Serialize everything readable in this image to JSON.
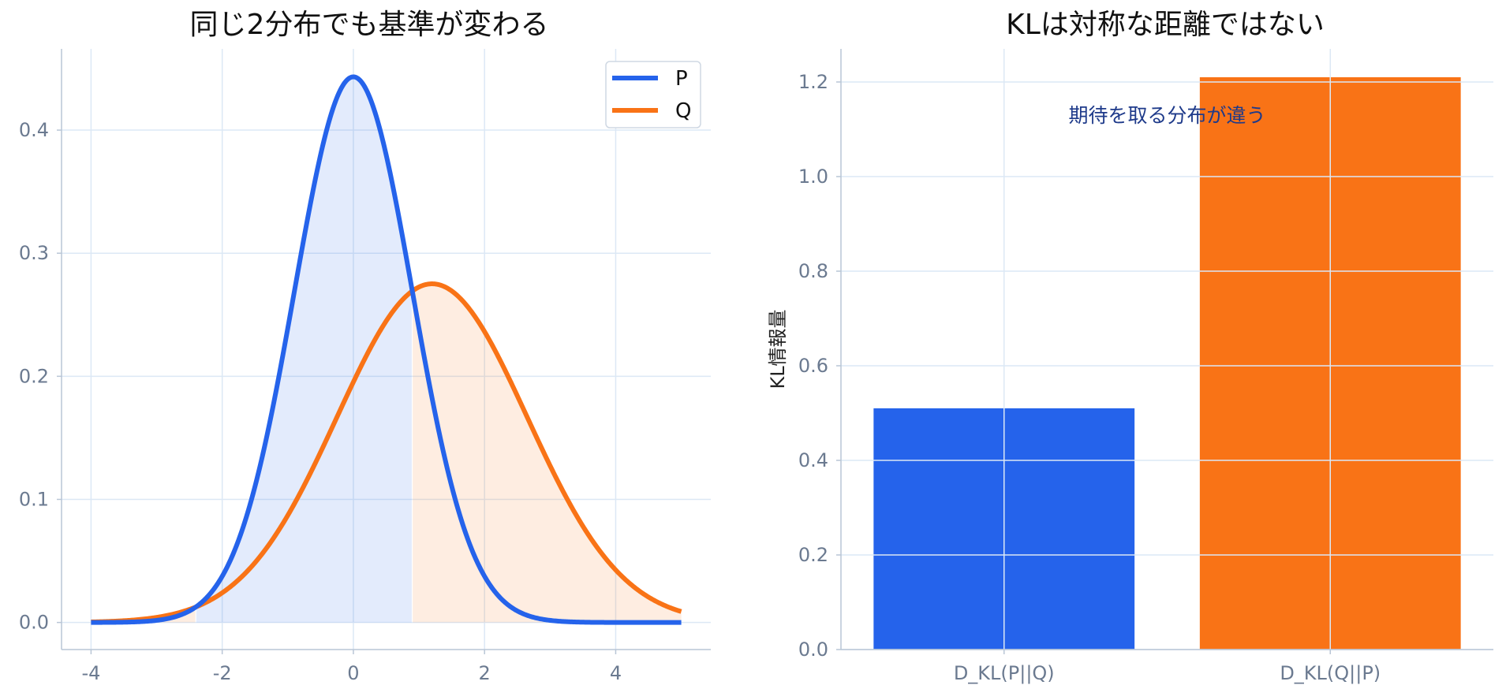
{
  "colors": {
    "p": "#2563eb",
    "q": "#f97316",
    "annotation": "#1e3a8a",
    "grid": "#dce8f5"
  },
  "chart_data": [
    {
      "type": "line",
      "title": "同じ2分布でも基準が変わる",
      "xlabel": "",
      "ylabel": "",
      "xlim": [
        -4.45,
        5.45
      ],
      "ylim": [
        -0.022,
        0.466
      ],
      "xticks": [
        -4,
        -2,
        0,
        2,
        4
      ],
      "xtick_labels": [
        "-4",
        "-2",
        "0",
        "2",
        "4"
      ],
      "yticks": [
        0.0,
        0.1,
        0.2,
        0.3,
        0.4
      ],
      "ytick_labels": [
        "0.0",
        "0.1",
        "0.2",
        "0.3",
        "0.4"
      ],
      "x_range": [
        -4,
        5
      ],
      "series": [
        {
          "name": "P",
          "distribution": "normal",
          "mean": 0,
          "sd": 0.9,
          "color": "#2563eb"
        },
        {
          "name": "Q",
          "distribution": "normal",
          "mean": 1.2,
          "sd": 1.45,
          "color": "#f97316"
        }
      ],
      "shaded_regions": [
        {
          "where": "P>Q",
          "color": "#2563eb"
        },
        {
          "where": "Q>P",
          "color": "#f97316"
        }
      ],
      "legend": {
        "placement": "top-right",
        "entries": [
          "P",
          "Q"
        ]
      },
      "grid": true
    },
    {
      "type": "bar",
      "title": "KLは対称な距離ではない",
      "xlabel": "",
      "ylabel": "KL情報量",
      "categories": [
        "D_KL(P||Q)",
        "D_KL(Q||P)"
      ],
      "values": [
        0.51,
        1.21
      ],
      "colors": [
        "#2563eb",
        "#f97316"
      ],
      "ylim": [
        0,
        1.27
      ],
      "yticks": [
        0.0,
        0.2,
        0.4,
        0.6,
        0.8,
        1.0,
        1.2
      ],
      "ytick_labels": [
        "0.0",
        "0.2",
        "0.4",
        "0.6",
        "0.8",
        "1.0",
        "1.2"
      ],
      "annotation": {
        "text": "期待を取る分布が違う",
        "x": 0.5,
        "y": 1.13
      },
      "grid": true
    }
  ]
}
